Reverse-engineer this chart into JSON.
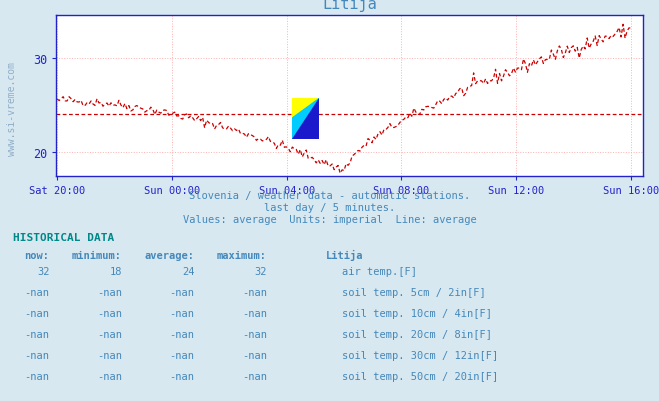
{
  "title": "Litija",
  "bg_color": "#d8e8f0",
  "plot_bg_color": "#ffffff",
  "grid_color": "#ffb0b0",
  "line_color": "#cc0000",
  "avg_line_color": "#cc0000",
  "avg_value": 24,
  "ylim": [
    17.5,
    34.5
  ],
  "yticks": [
    20,
    30
  ],
  "spine_color": "#2222cc",
  "text_color": "#4488bb",
  "hist_text_color": "#4499cc",
  "subtitle1": "Slovenia / weather data - automatic stations.",
  "subtitle2": "last day / 5 minutes.",
  "subtitle3": "Values: average  Units: imperial  Line: average",
  "hist_title": "HISTORICAL DATA",
  "col_headers": [
    "now:",
    "minimum:",
    "average:",
    "maximum:",
    "Litija"
  ],
  "rows": [
    {
      "now": "32",
      "min": "18",
      "avg": "24",
      "max": "32",
      "color": "#cc0000",
      "label": "air temp.[F]"
    },
    {
      "now": "-nan",
      "min": "-nan",
      "avg": "-nan",
      "max": "-nan",
      "color": "#c8b8a8",
      "label": "soil temp. 5cm / 2in[F]"
    },
    {
      "now": "-nan",
      "min": "-nan",
      "avg": "-nan",
      "max": "-nan",
      "color": "#b8882a",
      "label": "soil temp. 10cm / 4in[F]"
    },
    {
      "now": "-nan",
      "min": "-nan",
      "avg": "-nan",
      "max": "-nan",
      "color": "#b89020",
      "label": "soil temp. 20cm / 8in[F]"
    },
    {
      "now": "-nan",
      "min": "-nan",
      "avg": "-nan",
      "max": "-nan",
      "color": "#806020",
      "label": "soil temp. 30cm / 12in[F]"
    },
    {
      "now": "-nan",
      "min": "-nan",
      "avg": "-nan",
      "max": "-nan",
      "color": "#784818",
      "label": "soil temp. 50cm / 20in[F]"
    }
  ],
  "watermark_text": "www.si-vreme.com",
  "x_tick_labels": [
    "Sat 20:00",
    "Sun 00:00",
    "Sun 04:00",
    "Sun 08:00",
    "Sun 12:00",
    "Sun 16:00"
  ]
}
